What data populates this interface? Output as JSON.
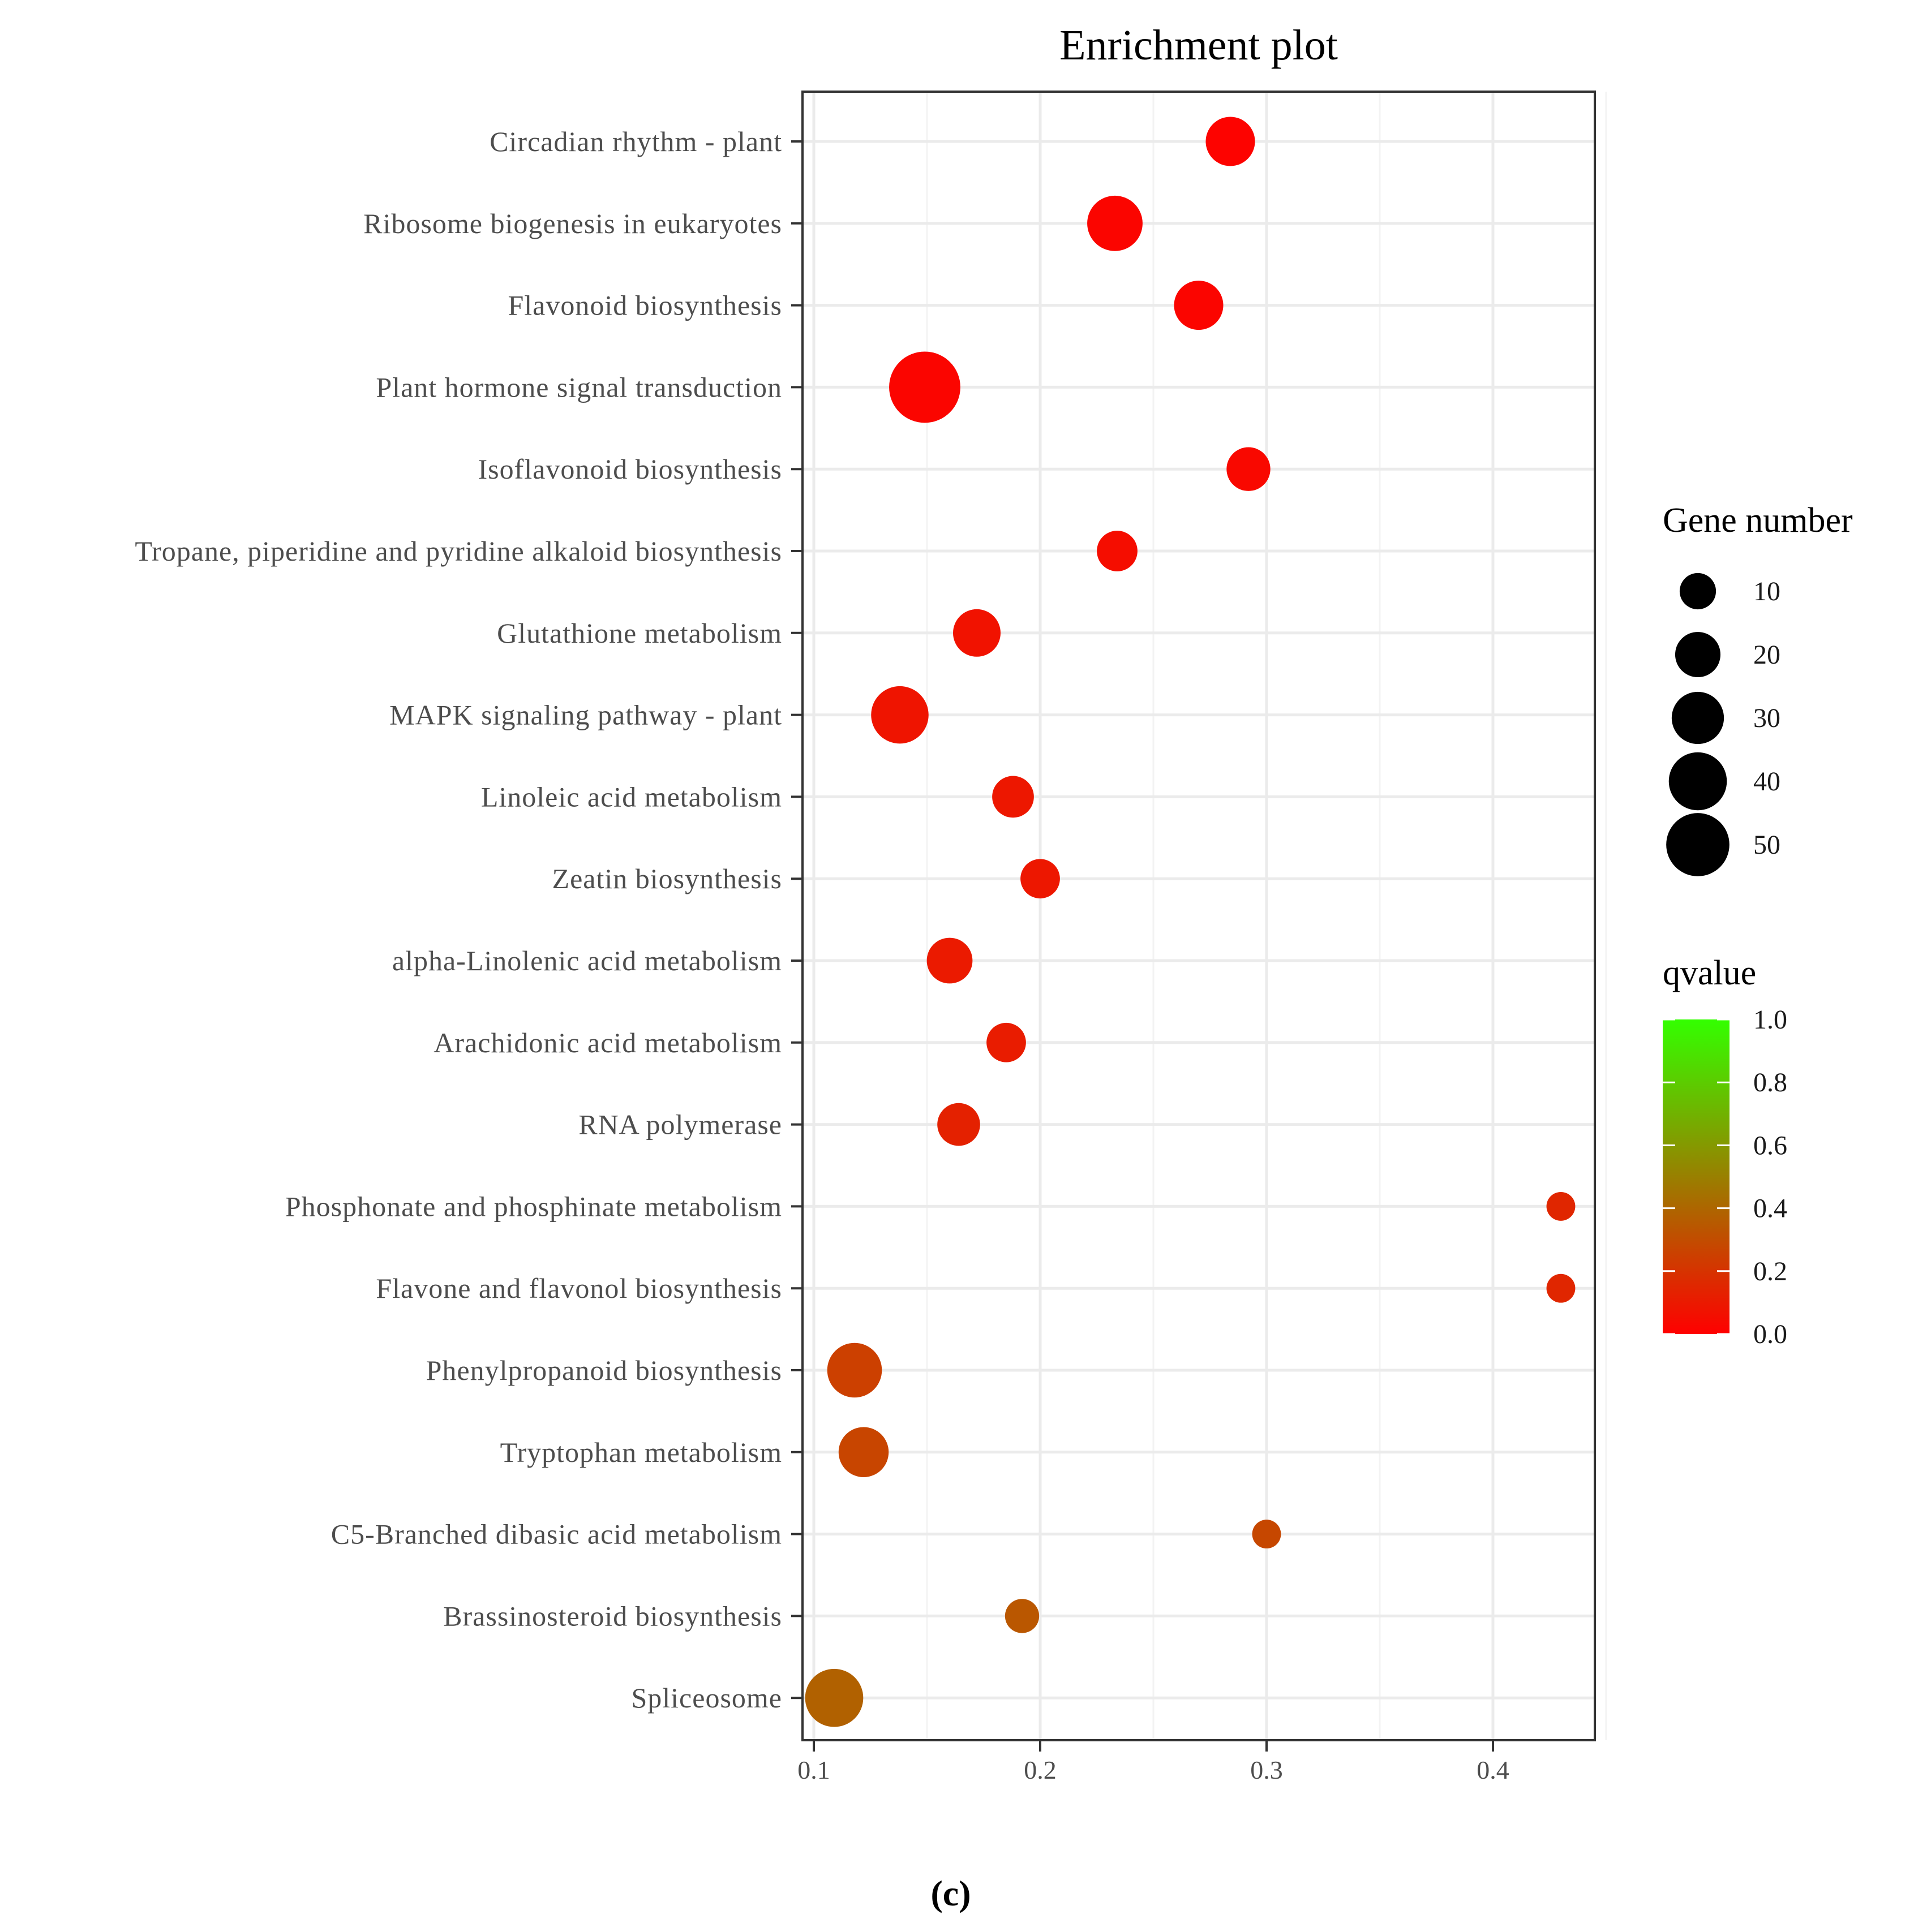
{
  "chart_data": {
    "type": "scatter",
    "title": "Enrichment plot",
    "xlabel": "",
    "ylabel": "",
    "xlim": [
      0.095,
      0.445
    ],
    "x_ticks": [
      "0.1",
      "0.2",
      "0.3",
      "0.4"
    ],
    "x_tick_values": [
      0.1,
      0.2,
      0.3,
      0.4
    ],
    "grid": true,
    "categories": [
      "Circadian rhythm - plant",
      "Ribosome biogenesis in eukaryotes",
      "Flavonoid biosynthesis",
      "Plant hormone signal transduction",
      "Isoflavonoid biosynthesis",
      "Tropane, piperidine and pyridine alkaloid biosynthesis",
      "Glutathione metabolism",
      "MAPK signaling pathway - plant",
      "Linoleic acid metabolism",
      "Zeatin biosynthesis",
      "alpha-Linolenic acid metabolism",
      "Arachidonic acid metabolism",
      "RNA polymerase",
      "Phosphonate and phosphinate metabolism",
      "Flavone and flavonol biosynthesis",
      "Phenylpropanoid biosynthesis",
      "Tryptophan metabolism",
      "C5-Branched dibasic acid metabolism",
      "Brassinosteroid biosynthesis",
      "Spliceosome"
    ],
    "points": [
      {
        "category": "Circadian rhythm - plant",
        "x": 0.284,
        "gene_number": 20,
        "qvalue": 0.01
      },
      {
        "category": "Ribosome biogenesis in eukaryotes",
        "x": 0.233,
        "gene_number": 28,
        "qvalue": 0.02
      },
      {
        "category": "Flavonoid biosynthesis",
        "x": 0.27,
        "gene_number": 20,
        "qvalue": 0.02
      },
      {
        "category": "Plant hormone signal transduction",
        "x": 0.149,
        "gene_number": 55,
        "qvalue": 0.02
      },
      {
        "category": "Isoflavonoid biosynthesis",
        "x": 0.292,
        "gene_number": 14,
        "qvalue": 0.03
      },
      {
        "category": "Tropane, piperidine and pyridine alkaloid biosynthesis",
        "x": 0.234,
        "gene_number": 11,
        "qvalue": 0.05
      },
      {
        "category": "Glutathione metabolism",
        "x": 0.172,
        "gene_number": 18,
        "qvalue": 0.07
      },
      {
        "category": "MAPK signaling pathway - plant",
        "x": 0.138,
        "gene_number": 31,
        "qvalue": 0.08
      },
      {
        "category": "Linoleic acid metabolism",
        "x": 0.188,
        "gene_number": 12,
        "qvalue": 0.09
      },
      {
        "category": "Zeatin biosynthesis",
        "x": 0.2,
        "gene_number": 10,
        "qvalue": 0.09
      },
      {
        "category": "alpha-Linolenic acid metabolism",
        "x": 0.16,
        "gene_number": 16,
        "qvalue": 0.1
      },
      {
        "category": "Arachidonic acid metabolism",
        "x": 0.185,
        "gene_number": 10,
        "qvalue": 0.11
      },
      {
        "category": "RNA polymerase",
        "x": 0.164,
        "gene_number": 13,
        "qvalue": 0.13
      },
      {
        "category": "Phosphonate and phosphinate metabolism",
        "x": 0.43,
        "gene_number": 3,
        "qvalue": 0.15
      },
      {
        "category": "Flavone and flavonol biosynthesis",
        "x": 0.43,
        "gene_number": 3,
        "qvalue": 0.15
      },
      {
        "category": "Phenylpropanoid biosynthesis",
        "x": 0.118,
        "gene_number": 27,
        "qvalue": 0.25
      },
      {
        "category": "Tryptophan metabolism",
        "x": 0.122,
        "gene_number": 21,
        "qvalue": 0.27
      },
      {
        "category": "C5-Branched dibasic acid metabolism",
        "x": 0.3,
        "gene_number": 3,
        "qvalue": 0.28
      },
      {
        "category": "Brassinosteroid biosynthesis",
        "x": 0.192,
        "gene_number": 6,
        "qvalue": 0.34
      },
      {
        "category": "Spliceosome",
        "x": 0.109,
        "gene_number": 32,
        "qvalue": 0.38
      }
    ],
    "size_legend": {
      "title": "Gene number",
      "values": [
        10,
        20,
        30,
        40,
        50
      ],
      "labels": [
        "10",
        "20",
        "30",
        "40",
        "50"
      ]
    },
    "color_legend": {
      "title": "qvalue",
      "range": [
        0.0,
        1.0
      ],
      "ticks": [
        "0.0",
        "0.2",
        "0.4",
        "0.6",
        "0.8",
        "1.0"
      ],
      "tick_values": [
        0.0,
        0.2,
        0.4,
        0.6,
        0.8,
        1.0
      ],
      "low_color": "#ff0000",
      "high_color": "#33ff00"
    }
  },
  "caption": "(c)"
}
